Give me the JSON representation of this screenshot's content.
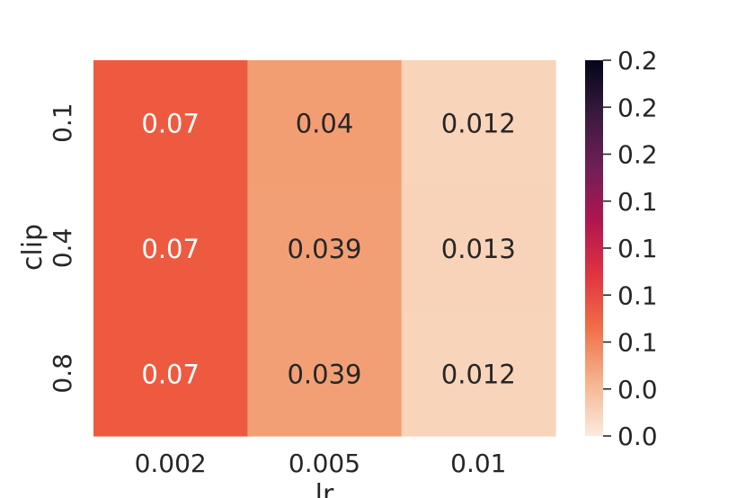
{
  "chart_data": {
    "type": "heatmap",
    "title": "",
    "xlabel": "lr",
    "ylabel": "clip",
    "x_categories": [
      "0.002",
      "0.005",
      "0.01"
    ],
    "y_categories": [
      "0.1",
      "0.4",
      "0.8"
    ],
    "values": [
      [
        0.07,
        0.04,
        0.012
      ],
      [
        0.07,
        0.039,
        0.013
      ],
      [
        0.07,
        0.039,
        0.012
      ]
    ],
    "cell_labels": [
      [
        "0.07",
        "0.04",
        "0.012"
      ],
      [
        "0.07",
        "0.039",
        "0.013"
      ],
      [
        "0.07",
        "0.039",
        "0.012"
      ]
    ],
    "cell_colors": [
      [
        "#ee5a40",
        "#f39d73",
        "#f8d4bb"
      ],
      [
        "#ee5a40",
        "#f39f75",
        "#f8d3ba"
      ],
      [
        "#ee5a40",
        "#f39f75",
        "#f8d4bb"
      ]
    ],
    "colorbar": {
      "colormap": "rocket_r",
      "ticks": [
        "0.2",
        "0.2",
        "0.2",
        "0.1",
        "0.1",
        "0.1",
        "0.1",
        "0.0",
        "0.0"
      ],
      "stops": [
        "#faebdd",
        "#f6b48e",
        "#f07048",
        "#e13342",
        "#b0164f",
        "#701f57",
        "#3a1a3e",
        "#03051a"
      ]
    },
    "grid": false,
    "legend": "colorbar-right"
  }
}
